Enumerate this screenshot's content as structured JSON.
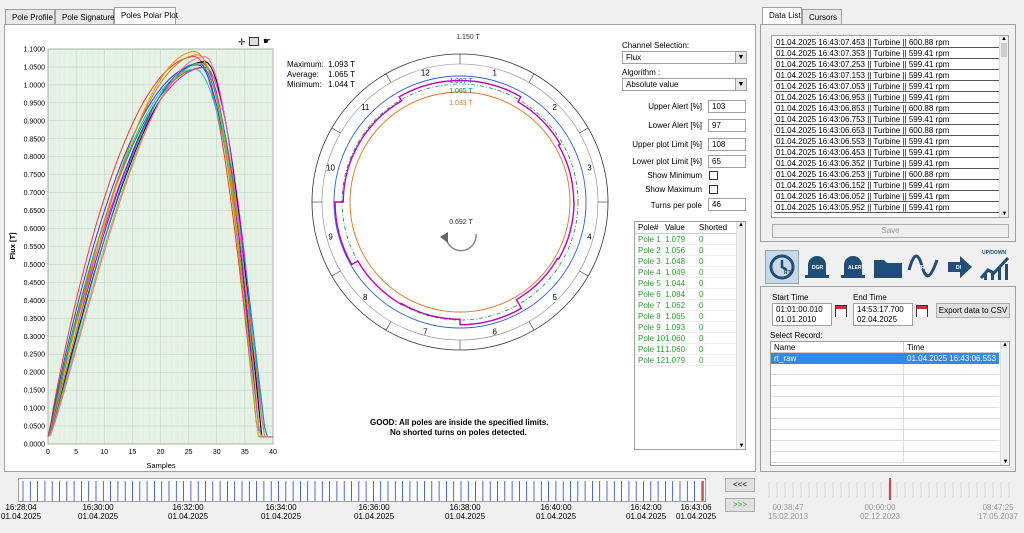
{
  "tabs": [
    "Pole Profile",
    "Pole Signature",
    "Poles Polar Plot"
  ],
  "right_tabs": [
    "Data List",
    "Cursors"
  ],
  "profile_chart": {
    "ylabel": "Flux [T]",
    "xlabel": "Samples",
    "yticks": [
      "1.1000",
      "1.0500",
      "1.0000",
      "0.9500",
      "0.9000",
      "0.8500",
      "0.8000",
      "0.7500",
      "0.7000",
      "0.6500",
      "0.6000",
      "0.5500",
      "0.5000",
      "0.4500",
      "0.4000",
      "0.3500",
      "0.3000",
      "0.2500",
      "0.2000",
      "0.1500",
      "0.1000",
      "0.0500",
      "0.0000"
    ],
    "xticks": [
      "0",
      "5",
      "10",
      "15",
      "20",
      "25",
      "30",
      "35",
      "40"
    ]
  },
  "stats": {
    "max_label": "Maximum:",
    "max_value": "1.093 T",
    "avg_label": "Average:",
    "avg_value": "1.065 T",
    "min_label": "Minimum:",
    "min_value": "1.044 T"
  },
  "polar": {
    "outer_limit": "1.150 T",
    "upper_alert": "1.097 T",
    "avg_line": "1.065 T",
    "lower_alert": "1.033 T",
    "center": "0.692 T",
    "pole_numbers": [
      "12",
      "1",
      "2",
      "3",
      "4",
      "5",
      "6",
      "7",
      "8",
      "9",
      "10",
      "11"
    ]
  },
  "status": {
    "line1": "GOOD: All poles are inside the  specified limits.",
    "line2": "No shorted turns on poles detected."
  },
  "settings": {
    "channel_label": "Channel Selection:",
    "channel_value": "Flux",
    "algorithm_label": "Algorithm :",
    "algorithm_value": "Absolute value",
    "upper_alert_label": "Upper Alert [%]",
    "upper_alert": "103",
    "lower_alert_label": "Lower Alert [%]",
    "lower_alert": "97",
    "upper_plot_label": "Upper plot Limit [%]",
    "upper_plot": "108",
    "lower_plot_label": "Lower plot Limit [%]",
    "lower_plot": "65",
    "show_min_label": "Show Minimum",
    "show_max_label": "Show Maximum",
    "turns_label": "Turns per pole",
    "turns": "46"
  },
  "pole_table": {
    "headers": [
      "Pole#",
      "Value",
      "Shorted"
    ],
    "rows": [
      [
        "Pole 1",
        "1.079",
        "0"
      ],
      [
        "Pole 2",
        "1.056",
        "0"
      ],
      [
        "Pole 3",
        "1.048",
        "0"
      ],
      [
        "Pole 4",
        "1.049",
        "0"
      ],
      [
        "Pole 5",
        "1.044",
        "0"
      ],
      [
        "Pole 6",
        "1.084",
        "0"
      ],
      [
        "Pole 7",
        "1.062",
        "0"
      ],
      [
        "Pole 8",
        "1.065",
        "0"
      ],
      [
        "Pole 9",
        "1.093",
        "0"
      ],
      [
        "Pole 10",
        "1.060",
        "0"
      ],
      [
        "Pole 11",
        "1.060",
        "0"
      ],
      [
        "Pole 12",
        "1.079",
        "0"
      ]
    ]
  },
  "data_list": [
    "01.04.2025 16:43:07.453 || Turbine || 600.88 rpm",
    "01.04.2025 16:43:07.353 || Turbine || 599.41 rpm",
    "01.04.2025 16:43:07.253 || Turbine || 599.41 rpm",
    "01.04.2025 16:43:07.153 || Turbine || 599.41 rpm",
    "01.04.2025 16:43:07.053 || Turbine || 599.41 rpm",
    "01.04.2025 16:43:06.953 || Turbine || 599.41 rpm",
    "01.04.2025 16:43:06.853 || Turbine || 600.88 rpm",
    "01.04.2025 16:43:06.753 || Turbine || 599.41 rpm",
    "01.04.2025 16:43:06.653 || Turbine || 600.88 rpm",
    "01.04.2025 16:43:06.553 || Turbine || 599.41 rpm",
    "01.04.2025 16:43:06.453 || Turbine || 599.41 rpm",
    "01.04.2025 16:43:06.352 || Turbine || 599.41 rpm",
    "01.04.2025 16:43:06.253 || Turbine || 600.88 rpm",
    "01.04.2025 16:43:06.152 || Turbine || 599.41 rpm",
    "01.04.2025 16:43:06.052 || Turbine || 599.41 rpm",
    "01.04.2025 16:43:05.952 || Turbine || 599.41 rpm"
  ],
  "save_label": "Save",
  "icon_labels": [
    "RT",
    "DGR",
    "ALERT",
    "",
    "TR",
    "DI",
    "UP/DOWN"
  ],
  "time_range": {
    "start_label": "Start Time",
    "start_time": "01:01:00.010",
    "start_date": "01.01.2010",
    "end_label": "End Time",
    "end_time": "14:53:17.700",
    "end_date": "02.04.2025",
    "export_label": "Export data to CSV"
  },
  "records": {
    "label": "Select Record:",
    "headers": [
      "Name",
      "Time"
    ],
    "rows": [
      [
        "rt_raw",
        "01.04.2025 16:43:06.553"
      ]
    ]
  },
  "mini_timeline": {
    "labels": [
      [
        "00:38:47",
        "15.02.2013"
      ],
      [
        "00:00:00",
        "02.12.2023"
      ],
      [
        "08:47:25",
        "17.05.2037"
      ]
    ]
  },
  "timeline": {
    "labels": [
      [
        "16:28:04",
        "01.04.2025"
      ],
      [
        "16:30:00",
        "01.04.2025"
      ],
      [
        "16:32:00",
        "01.04.2025"
      ],
      [
        "16:34:00",
        "01.04.2025"
      ],
      [
        "16:36:00",
        "01.04.2025"
      ],
      [
        "16:38:00",
        "01.04.2025"
      ],
      [
        "16:40:00",
        "01.04.2025"
      ],
      [
        "16:42:00",
        "01.04.2025"
      ],
      [
        "16:43:06",
        "01.04.2025"
      ]
    ],
    "prev_label": "<<<",
    "next_label": ">>>"
  }
}
